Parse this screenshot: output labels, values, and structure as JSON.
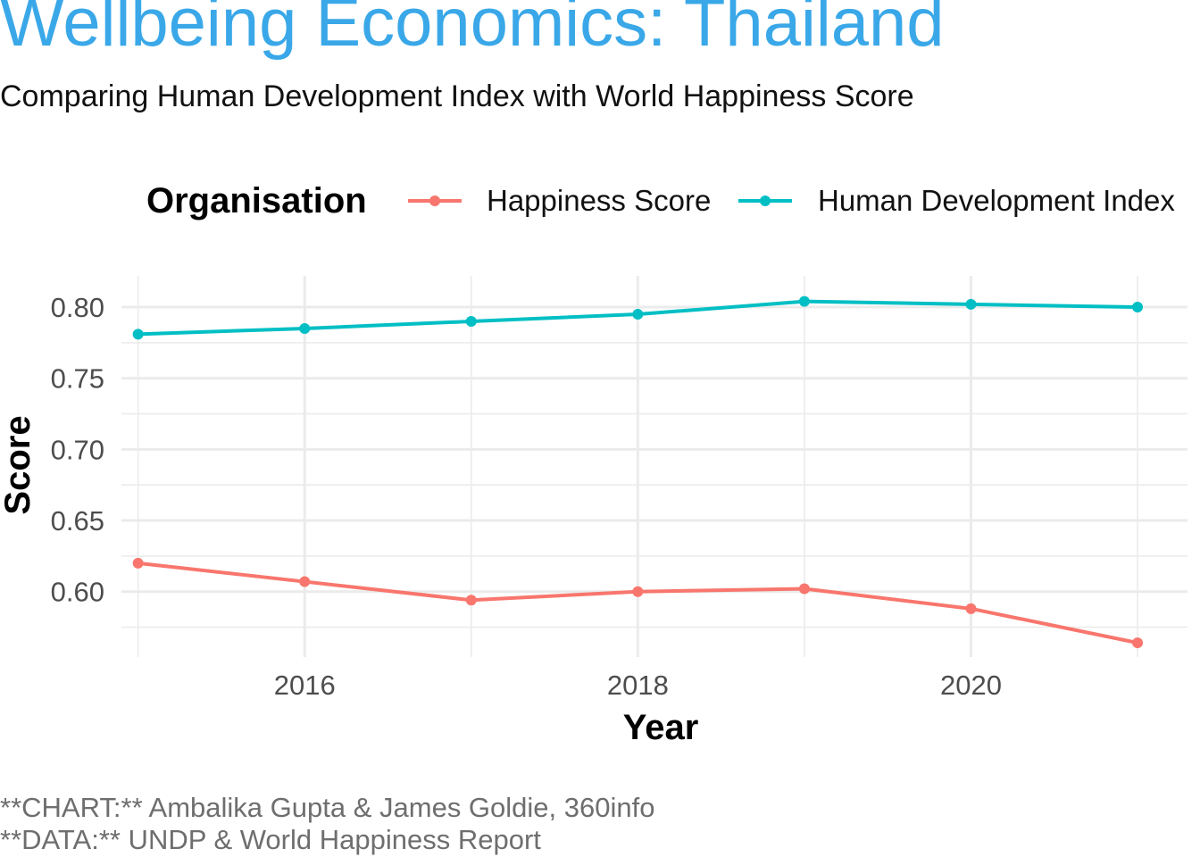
{
  "title": "Wellbeing Economics: Thailand",
  "subtitle": "Comparing Human Development Index with World Happiness Score",
  "caption": [
    "**CHART:** Ambalika Gupta & James Goldie, 360info",
    "**DATA:** UNDP & World Happiness Report"
  ],
  "colors": {
    "title": "#3AA8E8",
    "happiness": "#F8766D",
    "hdi": "#00BFC4",
    "grid": "#EBEBEB"
  },
  "chart_data": {
    "type": "line",
    "xlabel": "Year",
    "ylabel": "Score",
    "xlim": [
      2014.9,
      2021.3
    ],
    "ylim": [
      0.554,
      0.822
    ],
    "x_ticks": [
      2016,
      2018,
      2020
    ],
    "x_tick_labels": [
      "2016",
      "2018",
      "2020"
    ],
    "y_ticks": [
      0.6,
      0.65,
      0.7,
      0.75,
      0.8
    ],
    "y_tick_labels": [
      "0.60",
      "0.65",
      "0.70",
      "0.75",
      "0.80"
    ],
    "grid": true,
    "legend": {
      "title": "Organisation",
      "position": "top"
    },
    "x": [
      2015,
      2016,
      2017,
      2018,
      2019,
      2020,
      2021
    ],
    "series": [
      {
        "name": "Happiness Score",
        "color": "#F8766D",
        "values": [
          0.62,
          0.607,
          0.594,
          0.6,
          0.602,
          0.588,
          0.564
        ]
      },
      {
        "name": "Human Development Index",
        "color": "#00BFC4",
        "values": [
          0.781,
          0.785,
          0.79,
          0.795,
          0.804,
          0.802,
          0.8
        ]
      }
    ]
  }
}
